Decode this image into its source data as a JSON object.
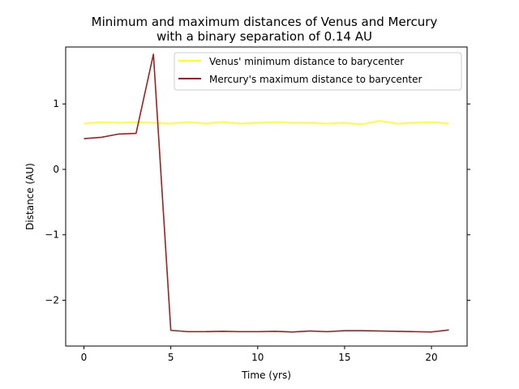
{
  "chart_data": {
    "type": "line",
    "title_lines": [
      "Minimum and maximum distances of Venus and Mercury",
      "with a binary separation of 0.14 AU"
    ],
    "xlabel": "Time (yrs)",
    "ylabel": "Distance (AU)",
    "xlim": [
      -1.05,
      22.05
    ],
    "ylim": [
      -2.7,
      1.87
    ],
    "xticks": [
      0,
      5,
      10,
      15,
      20
    ],
    "yticks": [
      -2,
      -1,
      0,
      1
    ],
    "xtick_labels": [
      "0",
      "5",
      "10",
      "15",
      "20"
    ],
    "ytick_labels": [
      "−2",
      "−1",
      "0",
      "1"
    ],
    "legend_position": "top-right",
    "x": [
      0,
      1,
      2,
      3,
      4,
      5,
      6,
      7,
      8,
      9,
      10,
      11,
      12,
      13,
      14,
      15,
      16,
      17,
      18,
      19,
      20,
      21
    ],
    "series": [
      {
        "name": "Venus' minimum distance to barycenter",
        "color": "#ffff14",
        "values": [
          0.7,
          0.72,
          0.71,
          0.72,
          0.71,
          0.7,
          0.72,
          0.7,
          0.72,
          0.7,
          0.71,
          0.72,
          0.71,
          0.71,
          0.7,
          0.71,
          0.69,
          0.74,
          0.7,
          0.71,
          0.72,
          0.7
        ]
      },
      {
        "name": "Mercury's maximum distance to barycenter",
        "color": "#9a2121",
        "values": [
          0.47,
          0.49,
          0.54,
          0.55,
          1.76,
          -2.46,
          -2.48,
          -2.48,
          -2.475,
          -2.48,
          -2.48,
          -2.475,
          -2.485,
          -2.47,
          -2.48,
          -2.465,
          -2.465,
          -2.47,
          -2.475,
          -2.48,
          -2.485,
          -2.455
        ]
      }
    ]
  }
}
